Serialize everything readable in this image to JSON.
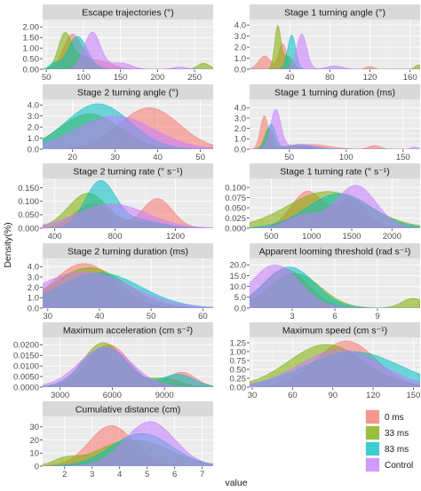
{
  "chart_data": {
    "type": "area",
    "ylabel": "Density(%)",
    "xlabel": "value",
    "legend": {
      "position": "bottom-right",
      "entries": [
        {
          "name": "0 ms",
          "color": "#F8766D"
        },
        {
          "name": "33 ms",
          "color": "#7CAE00"
        },
        {
          "name": "83 ms",
          "color": "#00BFC4"
        },
        {
          "name": "Control",
          "color": "#C77CFF"
        }
      ]
    },
    "series_names": [
      "0 ms",
      "33 ms",
      "83 ms",
      "Control"
    ],
    "panels": [
      {
        "title": "Escape trajectories (°)",
        "xlim": [
          45,
          275
        ],
        "ylim": [
          0,
          2.35
        ],
        "xticks": [
          50,
          100,
          150,
          200,
          250
        ],
        "xtick_labels": [
          "50",
          "100",
          "150",
          "200",
          "250"
        ],
        "yticks": [
          0,
          0.5,
          1,
          1.5,
          2
        ],
        "ytick_labels": [
          "0.00",
          "0.50",
          "1.00",
          "1.50",
          "2.00"
        ],
        "series": [
          {
            "name": "0 ms",
            "components": [
              [
                1.6,
                85,
                12
              ],
              [
                0.4,
                120,
                18
              ]
            ]
          },
          {
            "name": "33 ms",
            "components": [
              [
                1.65,
                75,
                9
              ],
              [
                0.6,
                100,
                13
              ],
              [
                0.28,
                262,
                8
              ]
            ]
          },
          {
            "name": "83 ms",
            "components": [
              [
                1.55,
                92,
                13
              ],
              [
                0.25,
                60,
                6
              ]
            ]
          },
          {
            "name": "Control",
            "components": [
              [
                1.75,
                112,
                11
              ],
              [
                0.3,
                150,
                14
              ],
              [
                0.1,
                230,
                10
              ]
            ]
          }
        ]
      },
      {
        "title": "Stage 1 turning angle (°)",
        "xlim": [
          0,
          170
        ],
        "ylim": [
          0,
          4.5
        ],
        "xticks": [
          40,
          80,
          120,
          160
        ],
        "xtick_labels": [
          "40",
          "80",
          "120",
          "160"
        ],
        "yticks": [
          0,
          1,
          2,
          3,
          4
        ],
        "ytick_labels": [
          "0.0",
          "1.0",
          "2.0",
          "3.0",
          "4.0"
        ],
        "series": [
          {
            "name": "0 ms",
            "components": [
              [
                2.3,
                33,
                4
              ],
              [
                1.2,
                15,
                6
              ],
              [
                0.25,
                120,
                4
              ]
            ]
          },
          {
            "name": "33 ms",
            "components": [
              [
                3.8,
                28,
                3
              ],
              [
                1.2,
                38,
                5
              ],
              [
                0.4,
                168,
                3
              ]
            ]
          },
          {
            "name": "83 ms",
            "components": [
              [
                3.1,
                42,
                4
              ]
            ]
          },
          {
            "name": "Control",
            "components": [
              [
                3.2,
                52,
                5
              ],
              [
                0.3,
                85,
                8
              ]
            ]
          }
        ]
      },
      {
        "title": "Stage 2 turning angle (°)",
        "xlim": [
          13,
          53
        ],
        "ylim": [
          0,
          4.5
        ],
        "xticks": [
          20,
          30,
          40,
          50
        ],
        "xtick_labels": [
          "20",
          "30",
          "40",
          "50"
        ],
        "yticks": [
          0,
          1,
          2,
          3,
          4
        ],
        "ytick_labels": [
          "0.0",
          "1.0",
          "2.0",
          "3.0",
          "4.0"
        ],
        "series": [
          {
            "name": "0 ms",
            "components": [
              [
                3.75,
                38,
                7
              ]
            ]
          },
          {
            "name": "33 ms",
            "components": [
              [
                3.2,
                24,
                7
              ]
            ]
          },
          {
            "name": "83 ms",
            "components": [
              [
                4.1,
                26,
                7.5
              ]
            ]
          },
          {
            "name": "Control",
            "components": [
              [
                3.0,
                30,
                9
              ]
            ]
          }
        ]
      },
      {
        "title": "Stage 1 turning duration (ms)",
        "xlim": [
          15,
          165
        ],
        "ylim": [
          0,
          4.8
        ],
        "xticks": [
          50,
          100,
          150
        ],
        "xtick_labels": [
          "50",
          "100",
          "150"
        ],
        "yticks": [
          0,
          1,
          2,
          3,
          4
        ],
        "ytick_labels": [
          "0.0",
          "1.0",
          "2.0",
          "3.0",
          "4.0"
        ],
        "series": [
          {
            "name": "0 ms",
            "components": [
              [
                3.2,
                28,
                3.5
              ],
              [
                0.45,
                70,
                15
              ],
              [
                0.35,
                125,
                5
              ]
            ]
          },
          {
            "name": "33 ms",
            "components": [
              [
                2.0,
                32,
                4
              ],
              [
                0.4,
                55,
                10
              ]
            ]
          },
          {
            "name": "83 ms",
            "components": [
              [
                2.4,
                34,
                4
              ],
              [
                0.35,
                62,
                12
              ]
            ]
          },
          {
            "name": "Control",
            "components": [
              [
                3.8,
                38,
                4.5
              ],
              [
                0.5,
                60,
                10
              ],
              [
                0.2,
                160,
                3
              ]
            ]
          }
        ]
      },
      {
        "title": "Stage 2 turning rate (° s⁻¹)",
        "xlim": [
          320,
          1450
        ],
        "ylim": [
          0,
          0.185
        ],
        "xticks": [
          400,
          800,
          1200
        ],
        "xtick_labels": [
          "400",
          "800",
          "1200"
        ],
        "yticks": [
          0,
          0.05,
          0.1,
          0.15
        ],
        "ytick_labels": [
          "0.000",
          "0.050",
          "0.100",
          "0.150"
        ],
        "series": [
          {
            "name": "0 ms",
            "components": [
              [
                0.09,
                650,
                120
              ],
              [
                0.11,
                1080,
                100
              ]
            ]
          },
          {
            "name": "33 ms",
            "components": [
              [
                0.13,
                620,
                130
              ],
              [
                0.02,
                1000,
                120
              ]
            ]
          },
          {
            "name": "83 ms",
            "components": [
              [
                0.17,
                700,
                100
              ],
              [
                0.03,
                950,
                150
              ]
            ]
          },
          {
            "name": "Control",
            "components": [
              [
                0.09,
                780,
                230
              ]
            ]
          }
        ]
      },
      {
        "title": "Stage 1 turning rate (° s⁻¹)",
        "xlim": [
          230,
          2350
        ],
        "ylim": [
          0,
          0.122
        ],
        "xticks": [
          500,
          1000,
          1500,
          2000
        ],
        "xtick_labels": [
          "500",
          "1000",
          "1500",
          "2000"
        ],
        "yticks": [
          0,
          0.025,
          0.05,
          0.075,
          0.1
        ],
        "ytick_labels": [
          "0.000",
          "0.025",
          "0.050",
          "0.075",
          "0.100"
        ],
        "series": [
          {
            "name": "0 ms",
            "components": [
              [
                0.09,
                950,
                200
              ],
              [
                0.07,
                1500,
                180
              ]
            ]
          },
          {
            "name": "33 ms",
            "components": [
              [
                0.09,
                1200,
                500
              ]
            ]
          },
          {
            "name": "83 ms",
            "components": [
              [
                0.085,
                1350,
                400
              ]
            ]
          },
          {
            "name": "Control",
            "components": [
              [
                0.105,
                1550,
                250
              ],
              [
                0.03,
                900,
                200
              ]
            ]
          }
        ]
      },
      {
        "title": "Stage 2 turning duration (ms)",
        "xlim": [
          29,
          62
        ],
        "ylim": [
          0,
          4.8
        ],
        "xticks": [
          30,
          40,
          50,
          60
        ],
        "xtick_labels": [
          "30",
          "40",
          "50",
          "60"
        ],
        "yticks": [
          0,
          1,
          2,
          3,
          4
        ],
        "ytick_labels": [
          "0.0",
          "1.0",
          "2.0",
          "3.0",
          "4.0"
        ],
        "series": [
          {
            "name": "0 ms",
            "components": [
              [
                4.3,
                37,
                6
              ]
            ]
          },
          {
            "name": "33 ms",
            "components": [
              [
                3.9,
                38,
                7
              ]
            ]
          },
          {
            "name": "83 ms",
            "components": [
              [
                3.4,
                40,
                8
              ]
            ]
          },
          {
            "name": "Control",
            "components": [
              [
                3.5,
                37,
                9
              ]
            ]
          }
        ]
      },
      {
        "title": "Apparent looming threshold (rad s⁻¹)",
        "xlim": [
          0,
          12
        ],
        "ylim": [
          0,
          23
        ],
        "xticks": [
          3,
          6,
          9
        ],
        "xtick_labels": [
          "3",
          "6",
          "9"
        ],
        "yticks": [
          0,
          5,
          10,
          15,
          20
        ],
        "ytick_labels": [
          "0.0",
          "5.0",
          "10.0",
          "15.0",
          "20.0"
        ],
        "series": [
          {
            "name": "0 ms",
            "components": [
              [
                18,
                2.5,
                1.6
              ]
            ]
          },
          {
            "name": "33 ms",
            "components": [
              [
                16,
                3.2,
                1.8
              ],
              [
                4.5,
                11.5,
                0.8
              ]
            ]
          },
          {
            "name": "83 ms",
            "components": [
              [
                19,
                2.8,
                1.8
              ]
            ]
          },
          {
            "name": "Control",
            "components": [
              [
                20,
                1.8,
                1.7
              ]
            ]
          }
        ]
      },
      {
        "title": "Maximum acceleration (cm s⁻²)",
        "xlim": [
          2000,
          11800
        ],
        "ylim": [
          0,
          0.0235
        ],
        "xticks": [
          3000,
          6000,
          9000
        ],
        "xtick_labels": [
          "3000",
          "6000",
          "9000"
        ],
        "yticks": [
          0,
          0.005,
          0.01,
          0.015,
          0.02
        ],
        "ytick_labels": [
          "0.0000",
          "0.0050",
          "0.0100",
          "0.0150",
          "0.0200"
        ],
        "series": [
          {
            "name": "0 ms",
            "components": [
              [
                0.02,
                5800,
                1200
              ],
              [
                0.007,
                10000,
                800
              ]
            ]
          },
          {
            "name": "33 ms",
            "components": [
              [
                0.021,
                5500,
                1200
              ],
              [
                0.004,
                9000,
                900
              ]
            ]
          },
          {
            "name": "83 ms",
            "components": [
              [
                0.019,
                5600,
                1300
              ],
              [
                0.006,
                9800,
                900
              ]
            ]
          },
          {
            "name": "Control",
            "components": [
              [
                0.019,
                5600,
                1500
              ]
            ]
          }
        ]
      },
      {
        "title": "Maximum speed (cm s⁻¹)",
        "xlim": [
          28,
          155
        ],
        "ylim": [
          0,
          1.4
        ],
        "xticks": [
          30,
          60,
          90,
          120,
          150
        ],
        "xtick_labels": [
          "30",
          "60",
          "90",
          "120",
          "150"
        ],
        "yticks": [
          0,
          0.25,
          0.5,
          0.75,
          1,
          1.25
        ],
        "ytick_labels": [
          "0.00",
          "0.25",
          "0.50",
          "0.75",
          "1.00",
          "1.25"
        ],
        "series": [
          {
            "name": "0 ms",
            "components": [
              [
                1.3,
                100,
                22
              ]
            ]
          },
          {
            "name": "33 ms",
            "components": [
              [
                1.2,
                85,
                28
              ]
            ]
          },
          {
            "name": "83 ms",
            "components": [
              [
                1.0,
                105,
                35
              ]
            ]
          },
          {
            "name": "Control",
            "components": [
              [
                1.05,
                95,
                30
              ]
            ]
          }
        ]
      },
      {
        "title": "Cumulative distance (cm)",
        "xlim": [
          1.2,
          7.4
        ],
        "ylim": [
          0,
          38
        ],
        "xticks": [
          2,
          3,
          4,
          5,
          6,
          7
        ],
        "xtick_labels": [
          "2",
          "3",
          "4",
          "5",
          "6",
          "7"
        ],
        "yticks": [
          0,
          10,
          20,
          30
        ],
        "ytick_labels": [
          "0",
          "10",
          "20",
          "30"
        ],
        "series": [
          {
            "name": "0 ms",
            "components": [
              [
                31,
                3.7,
                0.8
              ]
            ]
          },
          {
            "name": "33 ms",
            "components": [
              [
                20,
                4.5,
                1.3
              ],
              [
                4,
                2.0,
                0.4
              ]
            ]
          },
          {
            "name": "83 ms",
            "components": [
              [
                25,
                4.8,
                1.1
              ]
            ]
          },
          {
            "name": "Control",
            "components": [
              [
                34,
                5.1,
                0.9
              ]
            ]
          }
        ]
      }
    ]
  }
}
